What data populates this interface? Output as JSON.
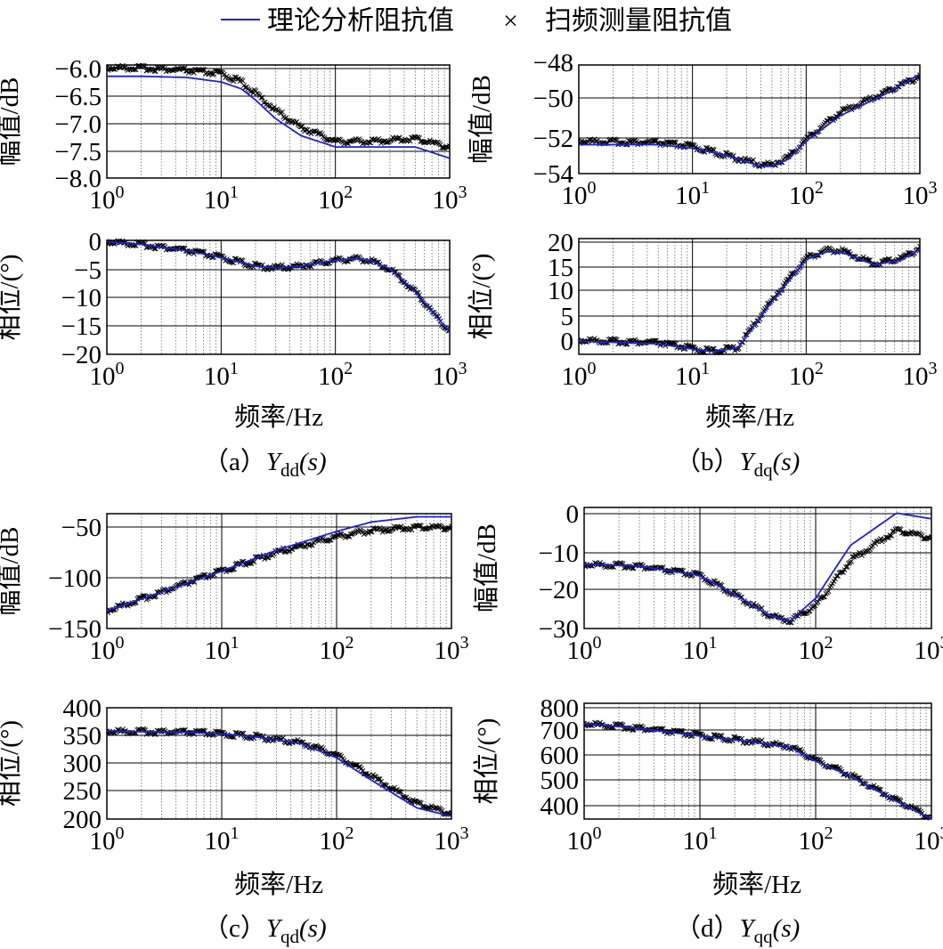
{
  "legend": {
    "theory_label": "理论分析阻抗值",
    "sweep_symbol": "×",
    "sweep_label": "扫频测量阻抗值",
    "theory_color": "#1f1fd6",
    "sweep_color": "#000000"
  },
  "axis_labels": {
    "magnitude": "幅值/dB",
    "phase": "相位/(°)",
    "frequency": "频率/Hz"
  },
  "x_ticks": [
    {
      "base": "10",
      "exp": "0"
    },
    {
      "base": "10",
      "exp": "1"
    },
    {
      "base": "10",
      "exp": "2"
    },
    {
      "base": "10",
      "exp": "3"
    }
  ],
  "captions": [
    {
      "prefix": "（a）",
      "sym": "Y",
      "sub": "dd",
      "arg": "(s)"
    },
    {
      "prefix": "（b）",
      "sym": "Y",
      "sub": "dq",
      "arg": "(s)"
    },
    {
      "prefix": "（c）",
      "sym": "Y",
      "sub": "qd",
      "arg": "(s)"
    },
    {
      "prefix": "（d）",
      "sym": "Y",
      "sub": "qq",
      "arg": "(s)"
    }
  ],
  "chart_data": [
    {
      "id": "a-mag",
      "type": "line",
      "panel": "a",
      "quantity": "magnitude",
      "xscale": "log",
      "xlabel": "",
      "ylabel": "幅值/dB",
      "xlim": [
        1,
        1000
      ],
      "ylim": [
        -8.0,
        -6.0
      ],
      "yticks": [
        "-6.0",
        "-6.5",
        "-7.0",
        "-7.5",
        "-8.0"
      ],
      "series": [
        {
          "role": "theory",
          "x": [
            1,
            2,
            5,
            10,
            15,
            20,
            30,
            50,
            100,
            200,
            500,
            1000
          ],
          "y": [
            -6.2,
            -6.2,
            -6.22,
            -6.3,
            -6.42,
            -6.62,
            -6.95,
            -7.25,
            -7.45,
            -7.45,
            -7.45,
            -7.65
          ]
        },
        {
          "role": "sweep",
          "x": [
            1,
            2,
            5,
            10,
            15,
            20,
            30,
            50,
            100,
            200,
            500,
            1000
          ],
          "y": [
            -6.05,
            -6.05,
            -6.1,
            -6.15,
            -6.3,
            -6.5,
            -6.8,
            -7.1,
            -7.35,
            -7.35,
            -7.3,
            -7.45
          ]
        }
      ]
    },
    {
      "id": "a-phase",
      "type": "line",
      "panel": "a",
      "quantity": "phase",
      "xscale": "log",
      "xlabel": "频率/Hz",
      "ylabel": "相位/(°)",
      "xlim": [
        1,
        1000
      ],
      "ylim": [
        -20,
        0
      ],
      "yticks": [
        "0",
        "-5",
        "-10",
        "-15",
        "-20"
      ],
      "series": [
        {
          "role": "theory",
          "x": [
            1,
            2,
            5,
            10,
            20,
            30,
            50,
            100,
            150,
            200,
            300,
            500,
            700,
            1000
          ],
          "y": [
            -0.2,
            -0.7,
            -1.8,
            -3.0,
            -4.5,
            -4.8,
            -4.5,
            -3.5,
            -3.2,
            -3.5,
            -5.0,
            -9.0,
            -12.5,
            -16.0
          ]
        },
        {
          "role": "sweep",
          "x": [
            1,
            2,
            5,
            10,
            20,
            30,
            50,
            100,
            150,
            200,
            300,
            500,
            700,
            1000
          ],
          "y": [
            -0.2,
            -0.7,
            -1.8,
            -3.0,
            -4.5,
            -4.8,
            -4.5,
            -3.5,
            -3.2,
            -3.5,
            -5.0,
            -9.0,
            -12.5,
            -16.0
          ]
        }
      ]
    },
    {
      "id": "b-mag",
      "type": "line",
      "panel": "b",
      "quantity": "magnitude",
      "xscale": "log",
      "xlabel": "",
      "ylabel": "幅值/dB",
      "xlim": [
        1,
        1000
      ],
      "ylim": [
        -54,
        -48
      ],
      "yticks": [
        "-48",
        "-50",
        "-52",
        "-54"
      ],
      "series": [
        {
          "role": "theory",
          "x": [
            1,
            5,
            10,
            20,
            40,
            50,
            70,
            100,
            200,
            500,
            1000
          ],
          "y": [
            -52.4,
            -52.4,
            -52.6,
            -53.0,
            -53.6,
            -53.6,
            -53.2,
            -52.2,
            -50.8,
            -49.6,
            -48.5
          ]
        },
        {
          "role": "sweep",
          "x": [
            1,
            5,
            10,
            20,
            40,
            50,
            70,
            100,
            200,
            500,
            1000
          ],
          "y": [
            -52.2,
            -52.3,
            -52.5,
            -53.0,
            -53.5,
            -53.5,
            -53.1,
            -52.1,
            -50.6,
            -49.5,
            -48.6
          ]
        }
      ]
    },
    {
      "id": "b-phase",
      "type": "line",
      "panel": "b",
      "quantity": "phase",
      "xscale": "log",
      "xlabel": "频率/Hz",
      "ylabel": "相位/(°)",
      "xlim": [
        1,
        1000
      ],
      "ylim": [
        -2,
        20
      ],
      "yticks": [
        "20",
        "15",
        "10",
        "5",
        "0"
      ],
      "series": [
        {
          "role": "theory",
          "x": [
            1,
            5,
            10,
            15,
            25,
            30,
            50,
            100,
            150,
            200,
            400,
            700,
            1000
          ],
          "y": [
            0.5,
            0,
            -1.0,
            -1.5,
            -0.8,
            1.5,
            8.0,
            16.0,
            17.5,
            17.5,
            15.0,
            16.0,
            18.0
          ]
        },
        {
          "role": "sweep",
          "x": [
            1,
            5,
            10,
            15,
            25,
            30,
            50,
            100,
            150,
            200,
            400,
            700,
            1000
          ],
          "y": [
            0.7,
            0.2,
            -0.9,
            -1.4,
            -0.7,
            1.7,
            8.3,
            16.3,
            17.8,
            17.8,
            15.2,
            16.3,
            18.3
          ]
        }
      ]
    },
    {
      "id": "c-mag",
      "type": "line",
      "panel": "c",
      "quantity": "magnitude",
      "xscale": "log",
      "xlabel": "",
      "ylabel": "幅值/dB",
      "xlim": [
        1,
        1000
      ],
      "ylim": [
        -150,
        -40
      ],
      "yticks": [
        "-50",
        "-100",
        "-150"
      ],
      "series": [
        {
          "role": "theory",
          "x": [
            1,
            3,
            10,
            30,
            100,
            200,
            500,
            1000
          ],
          "y": [
            -133,
            -115,
            -95,
            -75,
            -57,
            -48,
            -43,
            -43
          ]
        },
        {
          "role": "sweep",
          "x": [
            1,
            3,
            10,
            30,
            100,
            200,
            500,
            1000
          ],
          "y": [
            -133,
            -115,
            -95,
            -77,
            -62,
            -56,
            -53,
            -53
          ]
        }
      ]
    },
    {
      "id": "c-phase",
      "type": "line",
      "panel": "c",
      "quantity": "phase",
      "xscale": "log",
      "xlabel": "频率/Hz",
      "ylabel": "相位/(°)",
      "xlim": [
        1,
        1000
      ],
      "ylim": [
        200,
        400
      ],
      "yticks": [
        "400",
        "350",
        "300",
        "250",
        "200"
      ],
      "series": [
        {
          "role": "theory",
          "x": [
            1,
            5,
            10,
            20,
            50,
            100,
            200,
            500,
            1000
          ],
          "y": [
            358,
            356,
            353,
            348,
            335,
            310,
            270,
            220,
            205
          ]
        },
        {
          "role": "sweep",
          "x": [
            1,
            5,
            10,
            20,
            50,
            100,
            200,
            500,
            1000
          ],
          "y": [
            358,
            356,
            353,
            348,
            337,
            315,
            278,
            228,
            210
          ]
        }
      ]
    },
    {
      "id": "d-mag",
      "type": "line",
      "panel": "d",
      "quantity": "magnitude",
      "xscale": "log",
      "xlabel": "",
      "ylabel": "幅值/dB",
      "xlim": [
        1,
        1000
      ],
      "ylim": [
        -30,
        2
      ],
      "yticks": [
        "0",
        "-10",
        "-20",
        "-30"
      ],
      "series": [
        {
          "role": "theory",
          "x": [
            1,
            3,
            10,
            20,
            40,
            60,
            100,
            200,
            500,
            1000
          ],
          "y": [
            -13,
            -13.5,
            -16,
            -21,
            -26.5,
            -28,
            -22,
            -8,
            0.5,
            -1
          ]
        },
        {
          "role": "sweep",
          "x": [
            1,
            3,
            10,
            20,
            40,
            60,
            100,
            200,
            500,
            1000
          ],
          "y": [
            -13,
            -13.5,
            -16,
            -21,
            -26.5,
            -28,
            -24,
            -12,
            -4,
            -6
          ]
        }
      ]
    },
    {
      "id": "d-phase",
      "type": "line",
      "panel": "d",
      "quantity": "phase",
      "xscale": "log",
      "xlabel": "频率/Hz",
      "ylabel": "相位/(°)",
      "xlim": [
        1,
        1000
      ],
      "ylim": [
        340,
        800
      ],
      "yticks": [
        "800",
        "700",
        "600",
        "500",
        "400"
      ],
      "series": [
        {
          "role": "theory",
          "x": [
            1,
            3,
            10,
            30,
            60,
            100,
            200,
            500,
            1000
          ],
          "y": [
            720,
            700,
            670,
            645,
            625,
            570,
            510,
            410,
            340
          ]
        },
        {
          "role": "sweep",
          "x": [
            1,
            3,
            10,
            30,
            60,
            100,
            200,
            500,
            1000
          ],
          "y": [
            720,
            702,
            672,
            647,
            628,
            575,
            515,
            415,
            345
          ]
        }
      ]
    }
  ]
}
